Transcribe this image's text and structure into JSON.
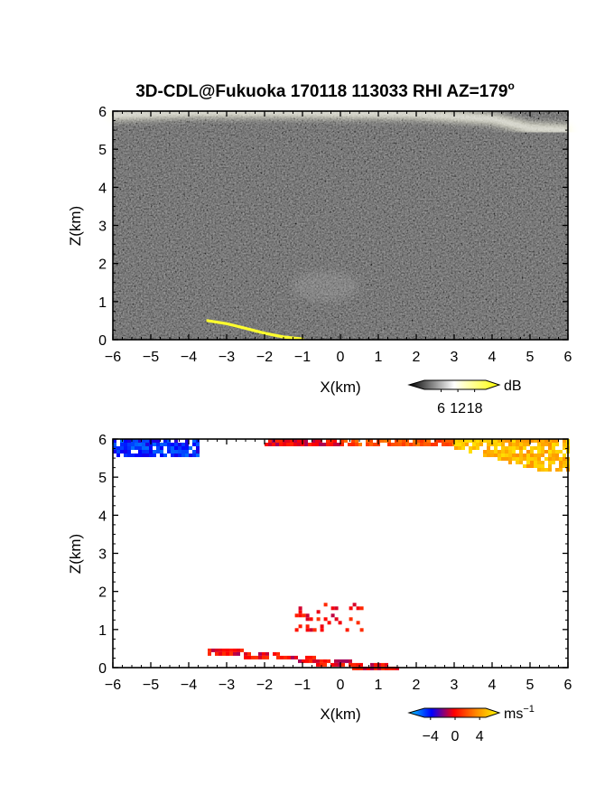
{
  "title": "3D-CDL@Fukuoka 170118 113033 RHI AZ=179",
  "title_degree": "o",
  "chart_data": [
    {
      "type": "heatmap",
      "panel": "backscatter",
      "xlabel": "X(km)",
      "ylabel": "Z(km)",
      "xlim": [
        -6,
        6
      ],
      "ylim": [
        0,
        6
      ],
      "xticks": [
        "−6",
        "−5",
        "−4",
        "−3",
        "−2",
        "−1",
        "0",
        "1",
        "2",
        "3",
        "4",
        "5",
        "6"
      ],
      "yticks": [
        "0",
        "1",
        "2",
        "3",
        "4",
        "5",
        "6"
      ],
      "grid": false,
      "colorbar": {
        "unit": "dB",
        "ticks": [
          "6",
          "12",
          "18"
        ],
        "range": [
          0,
          22
        ],
        "colors": [
          "#000000",
          "#ffffff",
          "#ffff00"
        ]
      },
      "features": [
        {
          "label": "top bright band",
          "x": [
            -6,
            -4,
            -2,
            0,
            2,
            4,
            5,
            6
          ],
          "z": [
            5.9,
            5.97,
            5.97,
            5.95,
            5.93,
            5.8,
            5.55,
            5.5
          ],
          "value_dB": 12
        },
        {
          "label": "mid cloud patch",
          "x": [
            -1.3,
            0.5
          ],
          "z": [
            1.0,
            1.8
          ],
          "value_dB": 8
        },
        {
          "label": "low layer",
          "x": [
            -3.5,
            -3.0,
            -2.5,
            -2.0,
            -1.5,
            -1.0
          ],
          "z": [
            0.5,
            0.42,
            0.3,
            0.17,
            0.07,
            0.02
          ],
          "value_dB": 20
        }
      ]
    },
    {
      "type": "heatmap",
      "panel": "doppler velocity",
      "xlabel": "X(km)",
      "ylabel": "Z(km)",
      "xlim": [
        -6,
        6
      ],
      "ylim": [
        0,
        6
      ],
      "xticks": [
        "−6",
        "−5",
        "−4",
        "−3",
        "−2",
        "−1",
        "0",
        "1",
        "2",
        "3",
        "4",
        "5",
        "6"
      ],
      "yticks": [
        "0",
        "1",
        "2",
        "3",
        "4",
        "5",
        "6"
      ],
      "grid": false,
      "colorbar": {
        "unit": "ms",
        "unit_exponent": "−1",
        "ticks": [
          "−4",
          "0",
          "4"
        ],
        "range": [
          -5,
          5
        ],
        "colors": [
          "#00d0ff",
          "#0000ff",
          "#ff0000",
          "#ff8c00",
          "#ffff00"
        ]
      },
      "features": [
        {
          "label": "top left echo",
          "x": [
            -6,
            -3.8
          ],
          "z": [
            5.6,
            6.0
          ],
          "value_ms": -3
        },
        {
          "label": "top centre-left echo",
          "x": [
            -2.0,
            0.0
          ],
          "z": [
            5.85,
            6.0
          ],
          "value_ms": 0
        },
        {
          "label": "top centre-right echo",
          "x": [
            0.0,
            3.0
          ],
          "z": [
            5.85,
            6.0
          ],
          "value_ms": 1.5
        },
        {
          "label": "top right echo",
          "x": [
            3.0,
            6.0
          ],
          "z": [
            5.2,
            6.0
          ],
          "value_ms": 3.5
        },
        {
          "label": "mid cloud echo",
          "x": [
            -1.2,
            0.6
          ],
          "z": [
            1.0,
            1.7
          ],
          "value_ms": 0
        },
        {
          "label": "low layer echo",
          "x": [
            -3.5,
            1.5
          ],
          "z": [
            0.0,
            0.5
          ],
          "value_ms": 0
        }
      ]
    }
  ]
}
